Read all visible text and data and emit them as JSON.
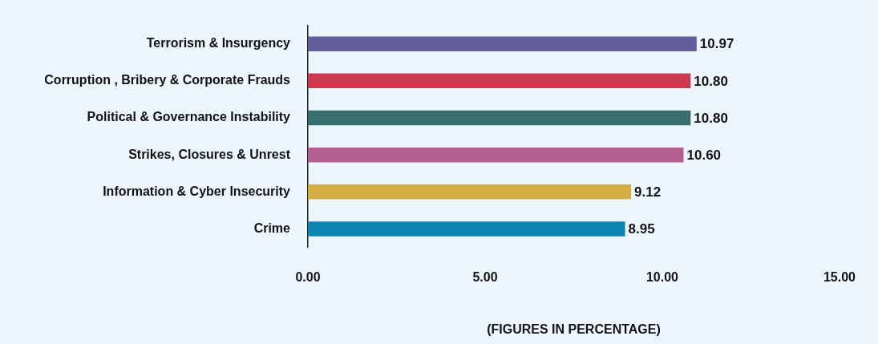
{
  "chart_data": {
    "type": "bar",
    "orientation": "horizontal",
    "xlabel": "(FIGURES IN PERCENTAGE)",
    "categories": [
      "Terrorism & Insurgency",
      "Corruption , Bribery & Corporate Frauds",
      "Political & Governance Instability",
      "Strikes, Closures & Unrest",
      "Information & Cyber Insecurity",
      "Crime"
    ],
    "values": [
      10.97,
      10.8,
      10.8,
      10.6,
      9.12,
      8.95
    ],
    "colors": [
      "#635e9b",
      "#cc3a4f",
      "#396e6e",
      "#b35f8f",
      "#d4ae45",
      "#0e84b0"
    ],
    "value_labels": [
      "10.97",
      "10.80",
      "10.80",
      "10.60",
      "9.12",
      "8.95"
    ],
    "xlim": [
      0,
      15
    ],
    "xticks": [
      {
        "value": 0,
        "label": "0.00"
      },
      {
        "value": 5,
        "label": "5.00"
      },
      {
        "value": 10,
        "label": "10.00"
      },
      {
        "value": 15,
        "label": "15.00"
      }
    ],
    "grid": false,
    "legend": false
  }
}
